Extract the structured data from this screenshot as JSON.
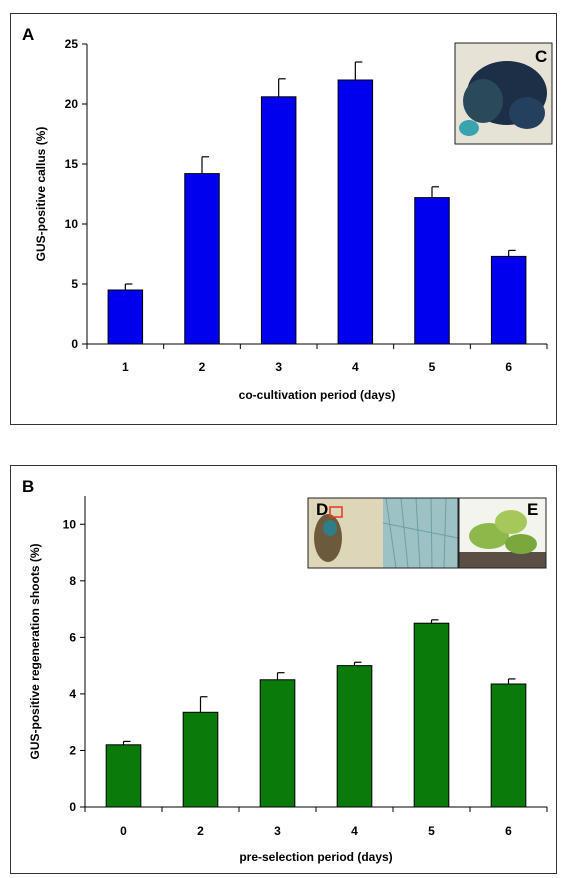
{
  "chart_data": [
    {
      "panel_label": "A",
      "type": "bar",
      "categories": [
        "1",
        "2",
        "3",
        "4",
        "5",
        "6"
      ],
      "values": [
        4.5,
        14.2,
        20.6,
        22.0,
        12.2,
        7.3
      ],
      "errors": [
        0.5,
        1.4,
        1.5,
        1.5,
        0.9,
        0.5
      ],
      "xlabel": "co-cultivation period (days)",
      "ylabel": "GUS-positive callus (%)",
      "ylim": [
        0,
        25
      ],
      "yticks": [
        "0",
        "5",
        "10",
        "15",
        "20",
        "25"
      ],
      "bar_color": "#0000ee",
      "grid": false,
      "inset_labels": [
        "C"
      ]
    },
    {
      "panel_label": "B",
      "type": "bar",
      "categories": [
        "0",
        "2",
        "3",
        "4",
        "5",
        "6"
      ],
      "values": [
        2.2,
        3.35,
        4.5,
        5.0,
        6.5,
        4.35
      ],
      "errors": [
        0.12,
        0.55,
        0.25,
        0.12,
        0.12,
        0.18
      ],
      "xlabel": "pre-selection period (days)",
      "ylabel": "GUS-positive regeneration shoots (%)",
      "ylim": [
        0,
        11
      ],
      "yticks": [
        "0",
        "2",
        "4",
        "6",
        "8",
        "10"
      ],
      "bar_color": "#0a7a0a",
      "grid": false,
      "inset_labels": [
        "D",
        "E"
      ]
    }
  ]
}
